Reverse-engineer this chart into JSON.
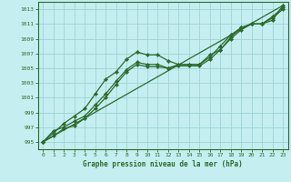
{
  "title": "Graphe pression niveau de la mer (hPa)",
  "background_color": "#c4eef0",
  "grid_color": "#a0d4d8",
  "line_color": "#2d6b2d",
  "xlim": [
    -0.5,
    23.5
  ],
  "ylim": [
    994.0,
    1014.0
  ],
  "yticks": [
    995,
    997,
    999,
    1001,
    1003,
    1005,
    1007,
    1009,
    1011,
    1013
  ],
  "xticks": [
    0,
    1,
    2,
    3,
    4,
    5,
    6,
    7,
    8,
    9,
    10,
    11,
    12,
    13,
    14,
    15,
    16,
    17,
    18,
    19,
    20,
    21,
    22,
    23
  ],
  "series_with_markers": [
    [
      995,
      996.2,
      997.5,
      998.5,
      999.5,
      1001.5,
      1003.5,
      1004.5,
      1006.2,
      1007.2,
      1006.8,
      1006.8,
      1006.0,
      1005.5,
      1005.5,
      1005.5,
      1006.5,
      1008.0,
      1009.5,
      1010.5,
      1011.0,
      1011.0,
      1011.5,
      1013.5
    ],
    [
      995,
      995.8,
      996.8,
      997.2,
      998.2,
      999.5,
      1001.0,
      1002.8,
      1004.5,
      1005.5,
      1005.2,
      1005.2,
      1005.0,
      1005.3,
      1005.3,
      1005.3,
      1006.2,
      1007.5,
      1009.2,
      1010.5,
      1011.0,
      1011.0,
      1012.0,
      1013.2
    ],
    [
      995,
      996.5,
      997.0,
      997.8,
      998.5,
      1000.0,
      1001.5,
      1003.2,
      1004.8,
      1005.8,
      1005.5,
      1005.5,
      1005.0,
      1005.5,
      1005.5,
      1005.5,
      1006.8,
      1007.5,
      1009.0,
      1010.2,
      1011.0,
      1011.0,
      1011.8,
      1013.0
    ]
  ],
  "series_straight": [
    995,
    1013.5
  ]
}
